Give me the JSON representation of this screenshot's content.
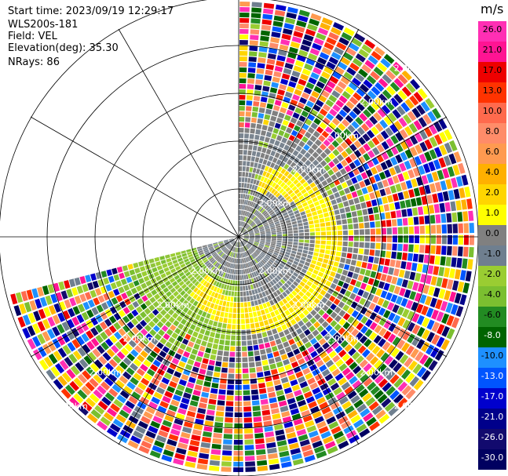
{
  "header": {
    "start_time": "Start time: 2023/09/19 12:29:17",
    "instrument": "WLS200s-181",
    "field": "Field: VEL",
    "elevation": "Elevation(deg): 35.30",
    "nrays": "NRays: 86"
  },
  "ppi": {
    "range_ring_label": "2.00km",
    "range_ring_count": 5,
    "sector_start_deg": 0,
    "sector_end_deg": 256,
    "nrays": 86
  },
  "colorbar": {
    "unit": "m/s",
    "labels": [
      "26.0",
      "21.0",
      "17.0",
      "13.0",
      "10.0",
      "8.0",
      "6.0",
      "4.0",
      "2.0",
      "1.0",
      "0.0",
      "-1.0",
      "-2.0",
      "-4.0",
      "-6.0",
      "-8.0",
      "-10.0",
      "-13.0",
      "-17.0",
      "-21.0",
      "-26.0",
      "-30.0"
    ],
    "colors": [
      "#ff2fb4",
      "#ff1493",
      "#ee0000",
      "#ff3300",
      "#ff6a4d",
      "#ff8c69",
      "#ff9a50",
      "#ffb000",
      "#ffd500",
      "#ffff00",
      "#808080",
      "#6f7f8f",
      "#9acd32",
      "#7bbf30",
      "#228b22",
      "#006400",
      "#1e90ff",
      "#0055ff",
      "#0000cd",
      "#00008b",
      "#120a6e",
      "#000060"
    ],
    "label_colors": [
      "#000",
      "#000",
      "#000",
      "#000",
      "#000",
      "#000",
      "#000",
      "#000",
      "#000",
      "#000",
      "#000",
      "#000",
      "#000",
      "#000",
      "#000",
      "#fff",
      "#000",
      "#fff",
      "#fff",
      "#fff",
      "#fff",
      "#fff"
    ]
  }
}
